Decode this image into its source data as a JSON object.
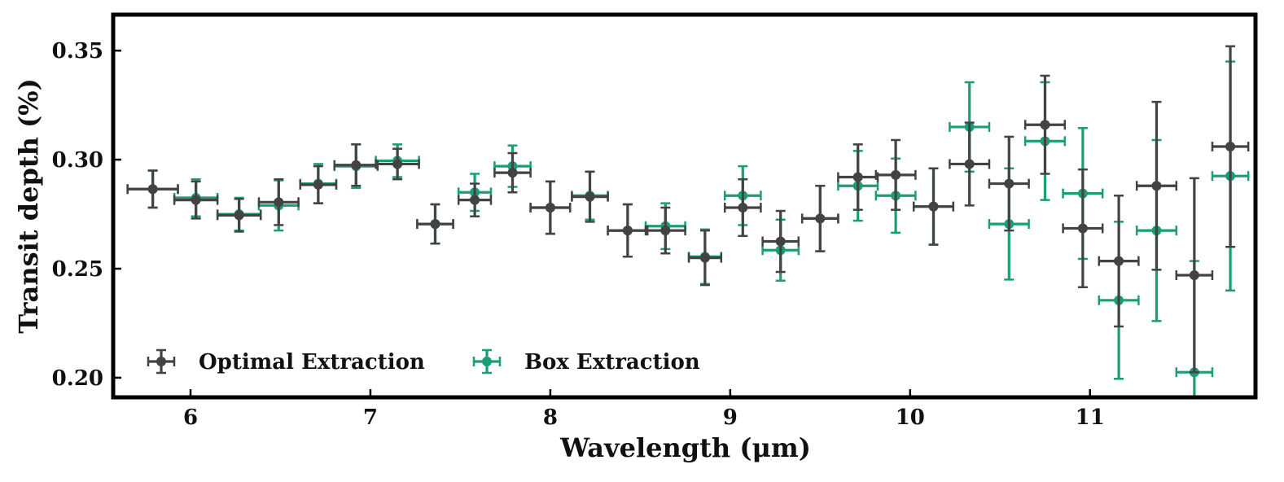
{
  "chart_data": {
    "type": "scatter",
    "title": "",
    "xlabel": "Wavelength (μm)",
    "ylabel": "Transit depth (%)",
    "xlim": [
      5.57,
      11.92
    ],
    "ylim": [
      0.191,
      0.3665
    ],
    "xticks": [
      6,
      7,
      8,
      9,
      10,
      11
    ],
    "yticks": [
      0.2,
      0.25,
      0.3,
      0.35
    ],
    "xtick_labels": [
      "6",
      "7",
      "8",
      "9",
      "10",
      "11"
    ],
    "ytick_labels": [
      "0.20",
      "0.25",
      "0.30",
      "0.35"
    ],
    "legend_position": "lower-left",
    "series": [
      {
        "name": "Optimal Extraction",
        "color": "#434343",
        "points": [
          {
            "x": 5.79,
            "y": 0.2865,
            "xerr": 0.14,
            "yerr": 0.0085
          },
          {
            "x": 6.03,
            "y": 0.2815,
            "xerr": 0.12,
            "yerr": 0.0085
          },
          {
            "x": 6.27,
            "y": 0.2745,
            "xerr": 0.12,
            "yerr": 0.0075
          },
          {
            "x": 6.49,
            "y": 0.2805,
            "xerr": 0.11,
            "yerr": 0.0105
          },
          {
            "x": 6.71,
            "y": 0.2885,
            "xerr": 0.1,
            "yerr": 0.0085
          },
          {
            "x": 6.92,
            "y": 0.2975,
            "xerr": 0.12,
            "yerr": 0.0095
          },
          {
            "x": 7.15,
            "y": 0.298,
            "xerr": 0.12,
            "yerr": 0.007
          },
          {
            "x": 7.36,
            "y": 0.2705,
            "xerr": 0.1,
            "yerr": 0.009
          },
          {
            "x": 7.58,
            "y": 0.2815,
            "xerr": 0.09,
            "yerr": 0.0075
          },
          {
            "x": 7.79,
            "y": 0.294,
            "xerr": 0.1,
            "yerr": 0.009
          },
          {
            "x": 8.0,
            "y": 0.278,
            "xerr": 0.11,
            "yerr": 0.012
          },
          {
            "x": 8.22,
            "y": 0.283,
            "xerr": 0.1,
            "yerr": 0.0115
          },
          {
            "x": 8.43,
            "y": 0.2675,
            "xerr": 0.11,
            "yerr": 0.012
          },
          {
            "x": 8.64,
            "y": 0.2675,
            "xerr": 0.11,
            "yerr": 0.0105
          },
          {
            "x": 8.86,
            "y": 0.255,
            "xerr": 0.09,
            "yerr": 0.0125
          },
          {
            "x": 9.07,
            "y": 0.278,
            "xerr": 0.1,
            "yerr": 0.013
          },
          {
            "x": 9.28,
            "y": 0.2625,
            "xerr": 0.1,
            "yerr": 0.014
          },
          {
            "x": 9.5,
            "y": 0.273,
            "xerr": 0.1,
            "yerr": 0.015
          },
          {
            "x": 9.71,
            "y": 0.292,
            "xerr": 0.11,
            "yerr": 0.015
          },
          {
            "x": 9.92,
            "y": 0.293,
            "xerr": 0.11,
            "yerr": 0.016
          },
          {
            "x": 10.13,
            "y": 0.2785,
            "xerr": 0.11,
            "yerr": 0.0175
          },
          {
            "x": 10.33,
            "y": 0.298,
            "xerr": 0.11,
            "yerr": 0.019
          },
          {
            "x": 10.55,
            "y": 0.289,
            "xerr": 0.11,
            "yerr": 0.0215
          },
          {
            "x": 10.75,
            "y": 0.316,
            "xerr": 0.11,
            "yerr": 0.0225
          },
          {
            "x": 10.96,
            "y": 0.2685,
            "xerr": 0.11,
            "yerr": 0.027
          },
          {
            "x": 11.16,
            "y": 0.2535,
            "xerr": 0.11,
            "yerr": 0.03
          },
          {
            "x": 11.37,
            "y": 0.288,
            "xerr": 0.11,
            "yerr": 0.0385
          },
          {
            "x": 11.58,
            "y": 0.247,
            "xerr": 0.1,
            "yerr": 0.0445
          },
          {
            "x": 11.78,
            "y": 0.306,
            "xerr": 0.1,
            "yerr": 0.046
          }
        ]
      },
      {
        "name": "Box Extraction",
        "color": "#1b9e77",
        "points": [
          {
            "x": 5.79,
            "y": 0.2865,
            "xerr": 0.14,
            "yerr": 0.0085
          },
          {
            "x": 6.03,
            "y": 0.2825,
            "xerr": 0.12,
            "yerr": 0.0085
          },
          {
            "x": 6.27,
            "y": 0.275,
            "xerr": 0.12,
            "yerr": 0.0075
          },
          {
            "x": 6.49,
            "y": 0.279,
            "xerr": 0.11,
            "yerr": 0.0115
          },
          {
            "x": 6.71,
            "y": 0.289,
            "xerr": 0.1,
            "yerr": 0.009
          },
          {
            "x": 6.92,
            "y": 0.297,
            "xerr": 0.12,
            "yerr": 0.01
          },
          {
            "x": 7.15,
            "y": 0.2995,
            "xerr": 0.12,
            "yerr": 0.0075
          },
          {
            "x": 7.36,
            "y": 0.2705,
            "xerr": 0.1,
            "yerr": 0.009
          },
          {
            "x": 7.58,
            "y": 0.285,
            "xerr": 0.09,
            "yerr": 0.0085
          },
          {
            "x": 7.79,
            "y": 0.297,
            "xerr": 0.1,
            "yerr": 0.0095
          },
          {
            "x": 8.0,
            "y": 0.278,
            "xerr": 0.11,
            "yerr": 0.012
          },
          {
            "x": 8.22,
            "y": 0.2835,
            "xerr": 0.1,
            "yerr": 0.011
          },
          {
            "x": 8.43,
            "y": 0.2675,
            "xerr": 0.11,
            "yerr": 0.012
          },
          {
            "x": 8.64,
            "y": 0.2695,
            "xerr": 0.11,
            "yerr": 0.0105
          },
          {
            "x": 8.86,
            "y": 0.2555,
            "xerr": 0.09,
            "yerr": 0.0125
          },
          {
            "x": 9.07,
            "y": 0.2835,
            "xerr": 0.1,
            "yerr": 0.0135
          },
          {
            "x": 9.28,
            "y": 0.2585,
            "xerr": 0.1,
            "yerr": 0.014
          },
          {
            "x": 9.5,
            "y": 0.273,
            "xerr": 0.1,
            "yerr": 0.015
          },
          {
            "x": 9.71,
            "y": 0.288,
            "xerr": 0.11,
            "yerr": 0.016
          },
          {
            "x": 9.92,
            "y": 0.2835,
            "xerr": 0.11,
            "yerr": 0.017
          },
          {
            "x": 10.13,
            "y": 0.2785,
            "xerr": 0.11,
            "yerr": 0.0175
          },
          {
            "x": 10.33,
            "y": 0.315,
            "xerr": 0.11,
            "yerr": 0.0205
          },
          {
            "x": 10.55,
            "y": 0.2705,
            "xerr": 0.11,
            "yerr": 0.0255
          },
          {
            "x": 10.75,
            "y": 0.3085,
            "xerr": 0.11,
            "yerr": 0.027
          },
          {
            "x": 10.96,
            "y": 0.2845,
            "xerr": 0.11,
            "yerr": 0.03
          },
          {
            "x": 11.16,
            "y": 0.2355,
            "xerr": 0.11,
            "yerr": 0.036
          },
          {
            "x": 11.37,
            "y": 0.2675,
            "xerr": 0.11,
            "yerr": 0.0415
          },
          {
            "x": 11.58,
            "y": 0.2025,
            "xerr": 0.1,
            "yerr": 0.051
          },
          {
            "x": 11.78,
            "y": 0.2925,
            "xerr": 0.1,
            "yerr": 0.0525
          }
        ]
      }
    ]
  }
}
